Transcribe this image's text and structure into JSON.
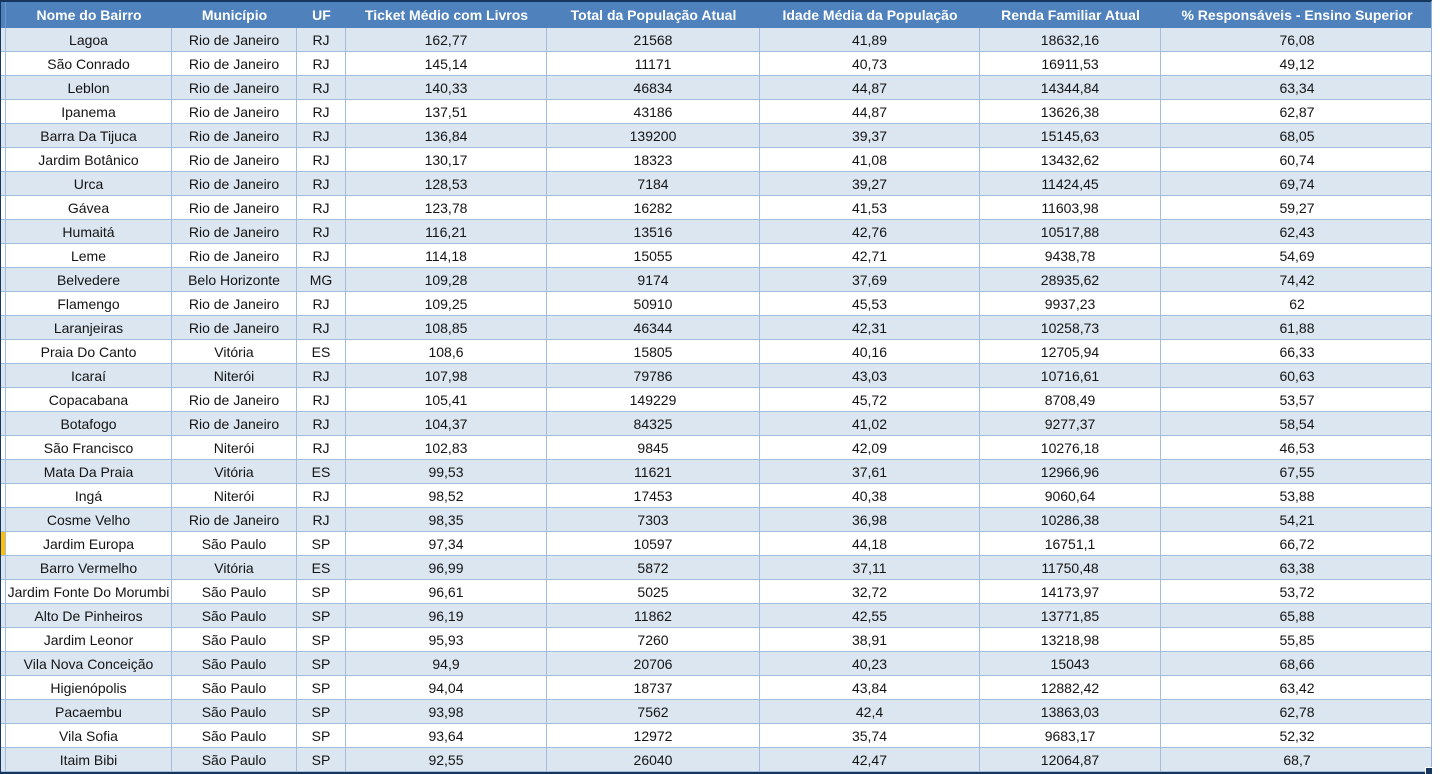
{
  "colors": {
    "header_bg": "#4F81BD",
    "header_text": "#FFFFFF",
    "stripe_bg": "#DCE6F1",
    "grid_border": "#A3BCDB",
    "selection_border": "#17365D",
    "row_marker": "#FFC000"
  },
  "table": {
    "columns": [
      {
        "key": "bairro",
        "label": "Nome do Bairro"
      },
      {
        "key": "municipio",
        "label": "Município"
      },
      {
        "key": "uf",
        "label": "UF"
      },
      {
        "key": "ticket_medio",
        "label": "Ticket Médio com Livros"
      },
      {
        "key": "populacao",
        "label": "Total da População Atual"
      },
      {
        "key": "idade_media",
        "label": "Idade Média da População"
      },
      {
        "key": "renda",
        "label": "Renda Familiar Atual"
      },
      {
        "key": "resp_superior",
        "label": "% Responsáveis - Ensino Superior"
      }
    ],
    "rows": [
      {
        "cells": [
          "Lagoa",
          "Rio de Janeiro",
          "RJ",
          "162,77",
          "21568",
          "41,89",
          "18632,16",
          "76,08"
        ]
      },
      {
        "cells": [
          "São Conrado",
          "Rio de Janeiro",
          "RJ",
          "145,14",
          "11171",
          "40,73",
          "16911,53",
          "49,12"
        ]
      },
      {
        "cells": [
          "Leblon",
          "Rio de Janeiro",
          "RJ",
          "140,33",
          "46834",
          "44,87",
          "14344,84",
          "63,34"
        ]
      },
      {
        "cells": [
          "Ipanema",
          "Rio de Janeiro",
          "RJ",
          "137,51",
          "43186",
          "44,87",
          "13626,38",
          "62,87"
        ]
      },
      {
        "cells": [
          "Barra Da Tijuca",
          "Rio de Janeiro",
          "RJ",
          "136,84",
          "139200",
          "39,37",
          "15145,63",
          "68,05"
        ]
      },
      {
        "cells": [
          "Jardim Botânico",
          "Rio de Janeiro",
          "RJ",
          "130,17",
          "18323",
          "41,08",
          "13432,62",
          "60,74"
        ]
      },
      {
        "cells": [
          "Urca",
          "Rio de Janeiro",
          "RJ",
          "128,53",
          "7184",
          "39,27",
          "11424,45",
          "69,74"
        ]
      },
      {
        "cells": [
          "Gávea",
          "Rio de Janeiro",
          "RJ",
          "123,78",
          "16282",
          "41,53",
          "11603,98",
          "59,27"
        ]
      },
      {
        "cells": [
          "Humaitá",
          "Rio de Janeiro",
          "RJ",
          "116,21",
          "13516",
          "42,76",
          "10517,88",
          "62,43"
        ]
      },
      {
        "cells": [
          "Leme",
          "Rio de Janeiro",
          "RJ",
          "114,18",
          "15055",
          "42,71",
          "9438,78",
          "54,69"
        ]
      },
      {
        "cells": [
          "Belvedere",
          "Belo Horizonte",
          "MG",
          "109,28",
          "9174",
          "37,69",
          "28935,62",
          "74,42"
        ]
      },
      {
        "cells": [
          "Flamengo",
          "Rio de Janeiro",
          "RJ",
          "109,25",
          "50910",
          "45,53",
          "9937,23",
          "62"
        ]
      },
      {
        "cells": [
          "Laranjeiras",
          "Rio de Janeiro",
          "RJ",
          "108,85",
          "46344",
          "42,31",
          "10258,73",
          "61,88"
        ]
      },
      {
        "cells": [
          "Praia Do Canto",
          "Vitória",
          "ES",
          "108,6",
          "15805",
          "40,16",
          "12705,94",
          "66,33"
        ]
      },
      {
        "cells": [
          "Icaraí",
          "Niterói",
          "RJ",
          "107,98",
          "79786",
          "43,03",
          "10716,61",
          "60,63"
        ]
      },
      {
        "cells": [
          "Copacabana",
          "Rio de Janeiro",
          "RJ",
          "105,41",
          "149229",
          "45,72",
          "8708,49",
          "53,57"
        ]
      },
      {
        "cells": [
          "Botafogo",
          "Rio de Janeiro",
          "RJ",
          "104,37",
          "84325",
          "41,02",
          "9277,37",
          "58,54"
        ]
      },
      {
        "cells": [
          "São Francisco",
          "Niterói",
          "RJ",
          "102,83",
          "9845",
          "42,09",
          "10276,18",
          "46,53"
        ]
      },
      {
        "cells": [
          "Mata Da Praia",
          "Vitória",
          "ES",
          "99,53",
          "11621",
          "37,61",
          "12966,96",
          "67,55"
        ]
      },
      {
        "cells": [
          "Ingá",
          "Niterói",
          "RJ",
          "98,52",
          "17453",
          "40,38",
          "9060,64",
          "53,88"
        ]
      },
      {
        "cells": [
          "Cosme Velho",
          "Rio de Janeiro",
          "RJ",
          "98,35",
          "7303",
          "36,98",
          "10286,38",
          "54,21"
        ]
      },
      {
        "cells": [
          "Jardim Europa",
          "São Paulo",
          "SP",
          "97,34",
          "10597",
          "44,18",
          "16751,1",
          "66,72"
        ],
        "marker": true
      },
      {
        "cells": [
          "Barro Vermelho",
          "Vitória",
          "ES",
          "96,99",
          "5872",
          "37,11",
          "11750,48",
          "63,38"
        ]
      },
      {
        "cells": [
          "Jardim Fonte Do Morumbi",
          "São Paulo",
          "SP",
          "96,61",
          "5025",
          "32,72",
          "14173,97",
          "53,72"
        ]
      },
      {
        "cells": [
          "Alto De Pinheiros",
          "São Paulo",
          "SP",
          "96,19",
          "11862",
          "42,55",
          "13771,85",
          "65,88"
        ]
      },
      {
        "cells": [
          "Jardim Leonor",
          "São Paulo",
          "SP",
          "95,93",
          "7260",
          "38,91",
          "13218,98",
          "55,85"
        ]
      },
      {
        "cells": [
          "Vila Nova Conceição",
          "São Paulo",
          "SP",
          "94,9",
          "20706",
          "40,23",
          "15043",
          "68,66"
        ]
      },
      {
        "cells": [
          "Higienópolis",
          "São Paulo",
          "SP",
          "94,04",
          "18737",
          "43,84",
          "12882,42",
          "63,42"
        ]
      },
      {
        "cells": [
          "Pacaembu",
          "São Paulo",
          "SP",
          "93,98",
          "7562",
          "42,4",
          "13863,03",
          "62,78"
        ]
      },
      {
        "cells": [
          "Vila Sofia",
          "São Paulo",
          "SP",
          "93,64",
          "12972",
          "35,74",
          "9683,17",
          "52,32"
        ]
      },
      {
        "cells": [
          "Itaim Bibi",
          "São Paulo",
          "SP",
          "92,55",
          "26040",
          "42,47",
          "12064,87",
          "68,7"
        ]
      }
    ]
  }
}
